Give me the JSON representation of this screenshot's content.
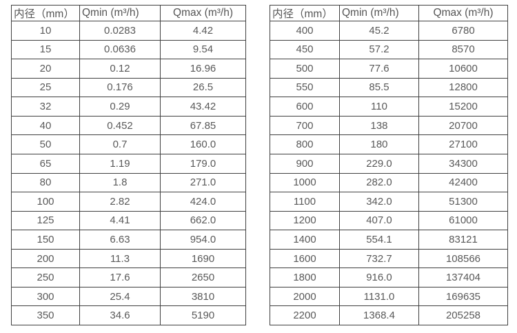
{
  "page": {
    "background": "#ffffff",
    "border_color": "#3f3f3f",
    "text_color": "#595959"
  },
  "tables": [
    {
      "name": "flow-range-table-small-diameters",
      "headers": [
        "内径（mm）",
        "Qmin (m³/h)",
        "Qmax (m³/h)"
      ],
      "rows": [
        [
          "10",
          "0.0283",
          "4.42"
        ],
        [
          "15",
          "0.0636",
          "9.54"
        ],
        [
          "20",
          "0.12",
          "16.96"
        ],
        [
          "25",
          "0.176",
          "26.5"
        ],
        [
          "32",
          "0.29",
          "43.42"
        ],
        [
          "40",
          "0.452",
          "67.85"
        ],
        [
          "50",
          "0.7",
          "160.0"
        ],
        [
          "65",
          "1.19",
          "179.0"
        ],
        [
          "80",
          "1.8",
          "271.0"
        ],
        [
          "100",
          "2.82",
          "424.0"
        ],
        [
          "125",
          "4.41",
          "662.0"
        ],
        [
          "150",
          "6.63",
          "954.0"
        ],
        [
          "200",
          "11.3",
          "1690"
        ],
        [
          "250",
          "17.6",
          "2650"
        ],
        [
          "300",
          "25.4",
          "3810"
        ],
        [
          "350",
          "34.6",
          "5190"
        ]
      ]
    },
    {
      "name": "flow-range-table-large-diameters",
      "headers": [
        "内径（mm）",
        "Qmin (m³/h)",
        "Qmax (m³/h)"
      ],
      "rows": [
        [
          "400",
          "45.2",
          "6780"
        ],
        [
          "450",
          "57.2",
          "8570"
        ],
        [
          "500",
          "77.6",
          "10600"
        ],
        [
          "550",
          "85.5",
          "12800"
        ],
        [
          "600",
          "110",
          "15200"
        ],
        [
          "700",
          "138",
          "20700"
        ],
        [
          "800",
          "180",
          "27100"
        ],
        [
          "900",
          "229.0",
          "34300"
        ],
        [
          "1000",
          "282.0",
          "42400"
        ],
        [
          "1100",
          "342.0",
          "51300"
        ],
        [
          "1200",
          "407.0",
          "61000"
        ],
        [
          "1400",
          "554.1",
          "83121"
        ],
        [
          "1600",
          "732.7",
          "108566"
        ],
        [
          "1800",
          "916.0",
          "137404"
        ],
        [
          "2000",
          "1131.0",
          "169635"
        ],
        [
          "2200",
          "1368.4",
          "205258"
        ]
      ]
    }
  ],
  "layout": {
    "left_table_col_widths": [
      99,
      117,
      124
    ],
    "right_table_col_widths": [
      101,
      115,
      129
    ]
  }
}
